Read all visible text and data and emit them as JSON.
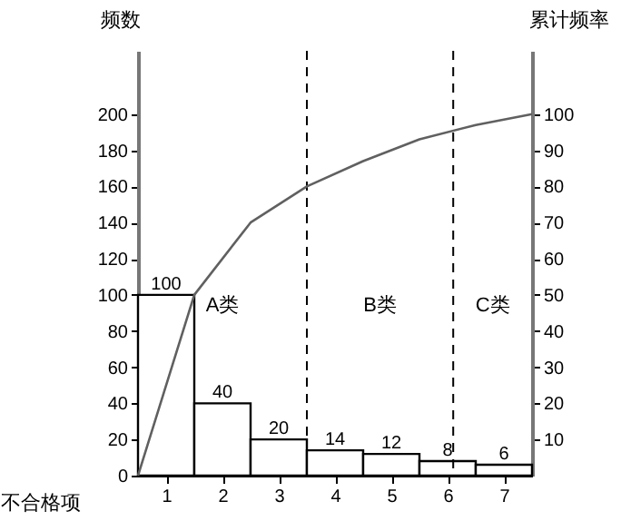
{
  "chart_data": {
    "type": "bar",
    "xlabel": "不合格项",
    "ylabel": "频数",
    "y2label": "累计频率",
    "xlim": [
      0,
      7
    ],
    "xticks": [
      {
        "value": 0.5,
        "label": "1"
      },
      {
        "value": 1.5,
        "label": "2"
      },
      {
        "value": 2.5,
        "label": "3"
      },
      {
        "value": 3.5,
        "label": "4"
      },
      {
        "value": 4.5,
        "label": "5"
      },
      {
        "value": 5.5,
        "label": "6"
      },
      {
        "value": 6.5,
        "label": "7"
      }
    ],
    "ylim": [
      0,
      235
    ],
    "yticks": [
      0,
      20,
      40,
      60,
      80,
      100,
      120,
      140,
      160,
      180,
      200
    ],
    "y2lim": [
      0,
      117.5
    ],
    "y2ticks": [
      10,
      20,
      30,
      40,
      50,
      60,
      70,
      80,
      90,
      100
    ],
    "series": [
      {
        "color": "#ffffff",
        "x": [
          0.5,
          1.5,
          2.5,
          3.5,
          4.5,
          5.5,
          6.5
        ],
        "values": [
          100,
          40,
          20,
          14,
          12,
          8,
          6
        ],
        "value_labels": [
          "100",
          "40",
          "20",
          "14",
          "12",
          "8",
          "6"
        ]
      },
      {
        "type": "line",
        "axis": "y2",
        "color": "#606060",
        "x": [
          0,
          1,
          2,
          3,
          4,
          5,
          6,
          7
        ],
        "values": [
          0,
          50,
          70,
          80,
          87,
          93,
          97,
          100
        ]
      }
    ],
    "ref_lines": [
      {
        "axis": "x",
        "value": 3,
        "line_style": "dashed",
        "color": "#000000"
      },
      {
        "axis": "x",
        "value": 5.6,
        "line_style": "dashed",
        "color": "#000000"
      }
    ],
    "annotations": [
      "A类",
      "B类",
      "C类"
    ],
    "grid": false
  }
}
